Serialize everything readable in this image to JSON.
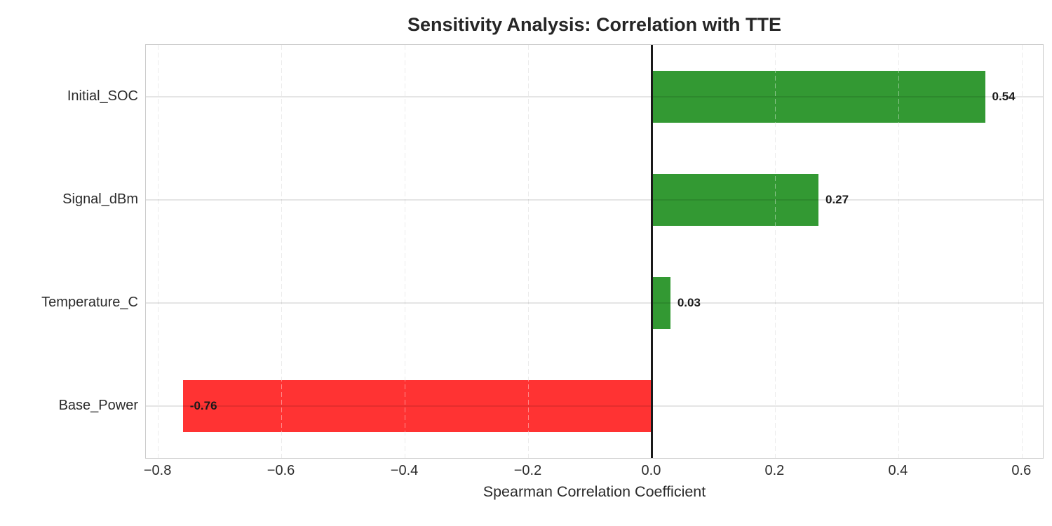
{
  "title": "Sensitivity Analysis: Correlation with TTE",
  "chart_data": {
    "type": "bar",
    "orientation": "horizontal",
    "title": "Sensitivity Analysis: Correlation with TTE",
    "xlabel": "Spearman Correlation Coefficient",
    "ylabel": "",
    "categories": [
      "Initial_SOC",
      "Signal_dBm",
      "Temperature_C",
      "Base_Power"
    ],
    "values": [
      0.54,
      0.27,
      0.03,
      -0.76
    ],
    "value_labels": [
      "0.54",
      "0.27",
      "0.03",
      "-0.76"
    ],
    "xlim": [
      -0.82,
      0.636
    ],
    "xticks": [
      -0.8,
      -0.6,
      -0.4,
      -0.2,
      0.0,
      0.2,
      0.4,
      0.6
    ],
    "xtick_labels": [
      "−0.8",
      "−0.6",
      "−0.4",
      "−0.2",
      "0.0",
      "0.2",
      "0.4",
      "0.6"
    ],
    "grid": {
      "vertical": "dashed",
      "horizontal": "solid"
    },
    "legend": false,
    "zero_line": true,
    "colors": {
      "positive_bar": "#339933",
      "negative_bar": "#ff3333",
      "zero_line": "#1a1a1a",
      "text": "#2b2b2b"
    }
  }
}
